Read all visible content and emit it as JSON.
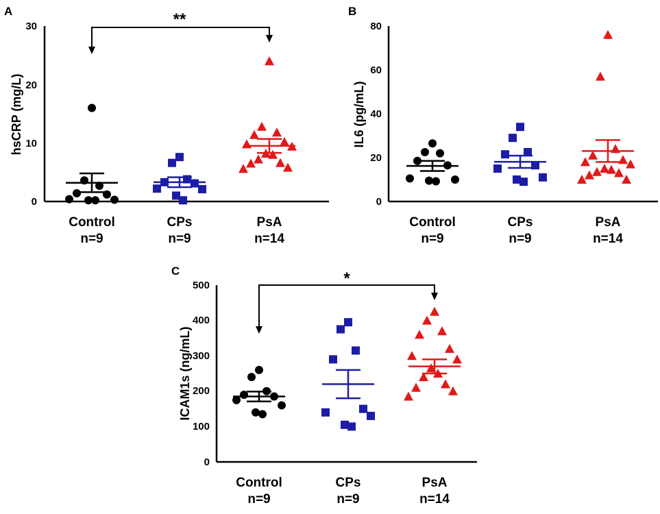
{
  "colors": {
    "control": "#000000",
    "cps": "#1c1ca6",
    "psa": "#e11919",
    "axis": "#000000"
  },
  "chart_data": [
    {
      "type": "scatter",
      "panel": "A",
      "ylabel": "hsCRP (mg/L)",
      "ylim": [
        0,
        30
      ],
      "yticks": [
        0,
        10,
        20,
        30
      ],
      "grid": false,
      "categories": [
        "Control",
        "CPs",
        "PsA"
      ],
      "counts": [
        "n=9",
        "n=9",
        "n=14"
      ],
      "groups": [
        {
          "name": "Control",
          "marker": "circle",
          "points": [
            16,
            3.6,
            2.7,
            1.4,
            1.2,
            0.4,
            0.3,
            0.2,
            0.2
          ],
          "mean": 3.2,
          "sem": 1.6
        },
        {
          "name": "CPs",
          "marker": "square",
          "points": [
            7.6,
            6.6,
            3.8,
            3.3,
            3.1,
            2.2,
            2.1,
            1.0,
            0.2
          ],
          "mean": 3.3,
          "sem": 0.85
        },
        {
          "name": "PsA",
          "marker": "triangle",
          "points": [
            24,
            12.8,
            11.8,
            11.4,
            10.2,
            9.8,
            9.4,
            8.2,
            8.0,
            7.2,
            6.6,
            6.5,
            5.8,
            5.6
          ],
          "mean": 9.5,
          "sem": 1.2
        }
      ],
      "significance": {
        "from": "Control",
        "to": "PsA",
        "label": "**",
        "y": 30
      }
    },
    {
      "type": "scatter",
      "panel": "B",
      "ylabel": "IL6 (pg/mL)",
      "ylim": [
        0,
        80
      ],
      "yticks": [
        0,
        20,
        40,
        60,
        80
      ],
      "grid": false,
      "categories": [
        "Control",
        "CPs",
        "PsA"
      ],
      "counts": [
        "n=9",
        "n=9",
        "n=14"
      ],
      "groups": [
        {
          "name": "Control",
          "marker": "circle",
          "points": [
            26.5,
            22.5,
            22,
            18.5,
            16.5,
            10.5,
            10,
            9.5,
            9.2
          ],
          "mean": 16.2,
          "sem": 2.3
        },
        {
          "name": "CPs",
          "marker": "square",
          "points": [
            34,
            29,
            22.5,
            21.5,
            16.5,
            15,
            11,
            10,
            9
          ],
          "mean": 18.1,
          "sem": 2.8
        },
        {
          "name": "PsA",
          "marker": "triangle",
          "points": [
            76,
            57,
            24,
            21,
            19,
            18,
            17,
            15,
            14.5,
            13.5,
            13,
            12,
            10,
            10
          ],
          "mean": 23,
          "sem": 5
        },
        {
          "name": "",
          "marker": "",
          "points": []
        }
      ],
      "significance": null
    },
    {
      "type": "scatter",
      "panel": "C",
      "ylabel": "ICAM1s (ng/mL)",
      "ylim": [
        0,
        500
      ],
      "yticks": [
        0,
        100,
        200,
        300,
        400,
        500
      ],
      "grid": false,
      "categories": [
        "Control",
        "CPs",
        "PsA"
      ],
      "counts": [
        "n=9",
        "n=9",
        "n=14"
      ],
      "groups": [
        {
          "name": "Control",
          "marker": "circle",
          "points": [
            260,
            240,
            200,
            190,
            185,
            175,
            160,
            140,
            135
          ],
          "mean": 185,
          "sem": 14
        },
        {
          "name": "CPs",
          "marker": "square",
          "points": [
            395,
            375,
            315,
            290,
            150,
            140,
            130,
            105,
            100
          ],
          "mean": 220,
          "sem": 40
        },
        {
          "name": "PsA",
          "marker": "triangle",
          "points": [
            425,
            400,
            370,
            360,
            320,
            300,
            290,
            265,
            250,
            240,
            220,
            210,
            200,
            185
          ],
          "mean": 270,
          "sem": 20
        }
      ],
      "significance": {
        "from": "Control",
        "to": "PsA",
        "label": "*",
        "y": 500
      }
    }
  ]
}
